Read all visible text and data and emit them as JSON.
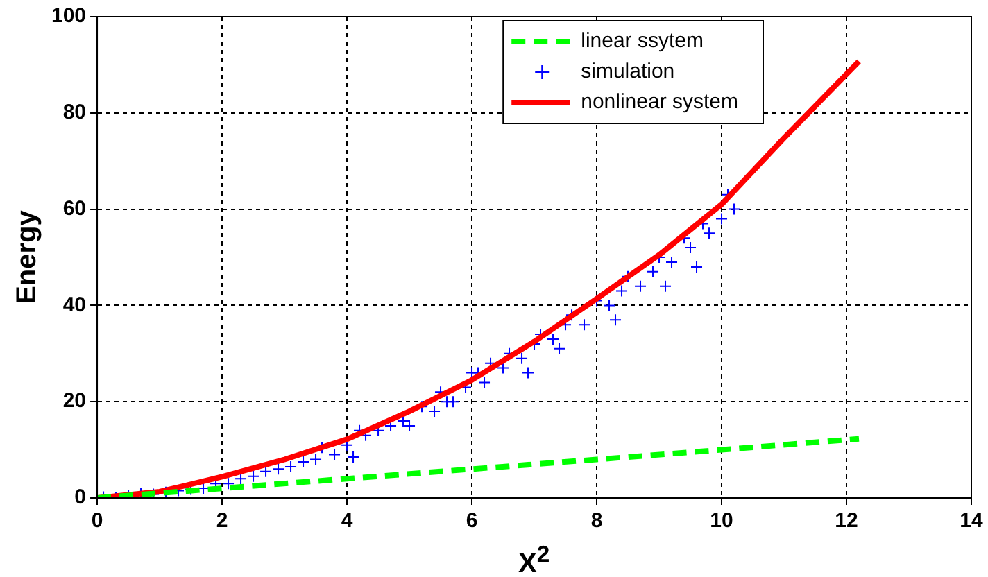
{
  "chart_data": {
    "type": "line",
    "xlabel": "X$^{2}$",
    "ylabel": "Energy",
    "xlim": [
      0,
      14
    ],
    "ylim": [
      0,
      100
    ],
    "xticks": [
      0,
      2,
      4,
      6,
      8,
      10,
      12,
      14
    ],
    "yticks": [
      0,
      20,
      40,
      60,
      80,
      100
    ],
    "grid": true,
    "legend": "top right",
    "series": [
      {
        "name": "linear ssytem",
        "line_style": "dashed",
        "color": "#00ff00",
        "x": [
          0,
          2,
          4,
          6,
          8,
          10,
          12.2
        ],
        "values": [
          0,
          2,
          4,
          6,
          8,
          10,
          12.3
        ]
      },
      {
        "name": "simulation",
        "type": "scatter",
        "marker": "cross",
        "color": "#0000ff",
        "x": [
          0.1,
          0.3,
          0.5,
          0.7,
          0.9,
          1.1,
          1.3,
          1.5,
          1.7,
          1.9,
          2.1,
          2.3,
          2.5,
          2.7,
          2.9,
          3.1,
          3.3,
          3.5,
          3.6,
          3.8,
          4.0,
          4.1,
          4.3,
          4.5,
          4.7,
          4.9,
          5.0,
          5.2,
          5.4,
          5.5,
          5.7,
          5.9,
          6.0,
          6.2,
          6.3,
          6.5,
          6.6,
          6.8,
          7.0,
          7.1,
          7.3,
          7.5,
          7.6,
          7.8,
          8.0,
          8.2,
          8.4,
          8.5,
          8.7,
          8.9,
          9.0,
          9.2,
          9.4,
          9.5,
          9.7,
          9.8,
          10.0,
          10.1,
          10.2,
          4.2,
          5.6,
          6.1,
          6.9,
          7.4,
          8.3,
          9.1,
          9.6
        ],
        "values": [
          0.2,
          0,
          0.5,
          1,
          0.8,
          1.2,
          1.5,
          1.8,
          2,
          3,
          3,
          4,
          4.5,
          5.5,
          6,
          6.5,
          7.5,
          8,
          10.5,
          9,
          11,
          8.5,
          13,
          14,
          15,
          16,
          15,
          19,
          18,
          22,
          20,
          23,
          26,
          24,
          28,
          27,
          30,
          29,
          32,
          34,
          33,
          36,
          38,
          36,
          41,
          40,
          43,
          46,
          44,
          47,
          50,
          49,
          54,
          52,
          57,
          55,
          58,
          63,
          60,
          14,
          20,
          26,
          26,
          31,
          37,
          44,
          48
        ]
      },
      {
        "name": "nonlinear system",
        "line_style": "solid",
        "color": "#ff0000",
        "x": [
          0,
          1,
          2,
          3,
          4,
          5,
          6,
          7,
          8,
          9,
          10,
          11,
          12.2
        ],
        "values": [
          0,
          1.3,
          4.4,
          8,
          12.2,
          18,
          24.5,
          32.5,
          41.4,
          50.5,
          61,
          74.8,
          90.7
        ]
      }
    ]
  }
}
